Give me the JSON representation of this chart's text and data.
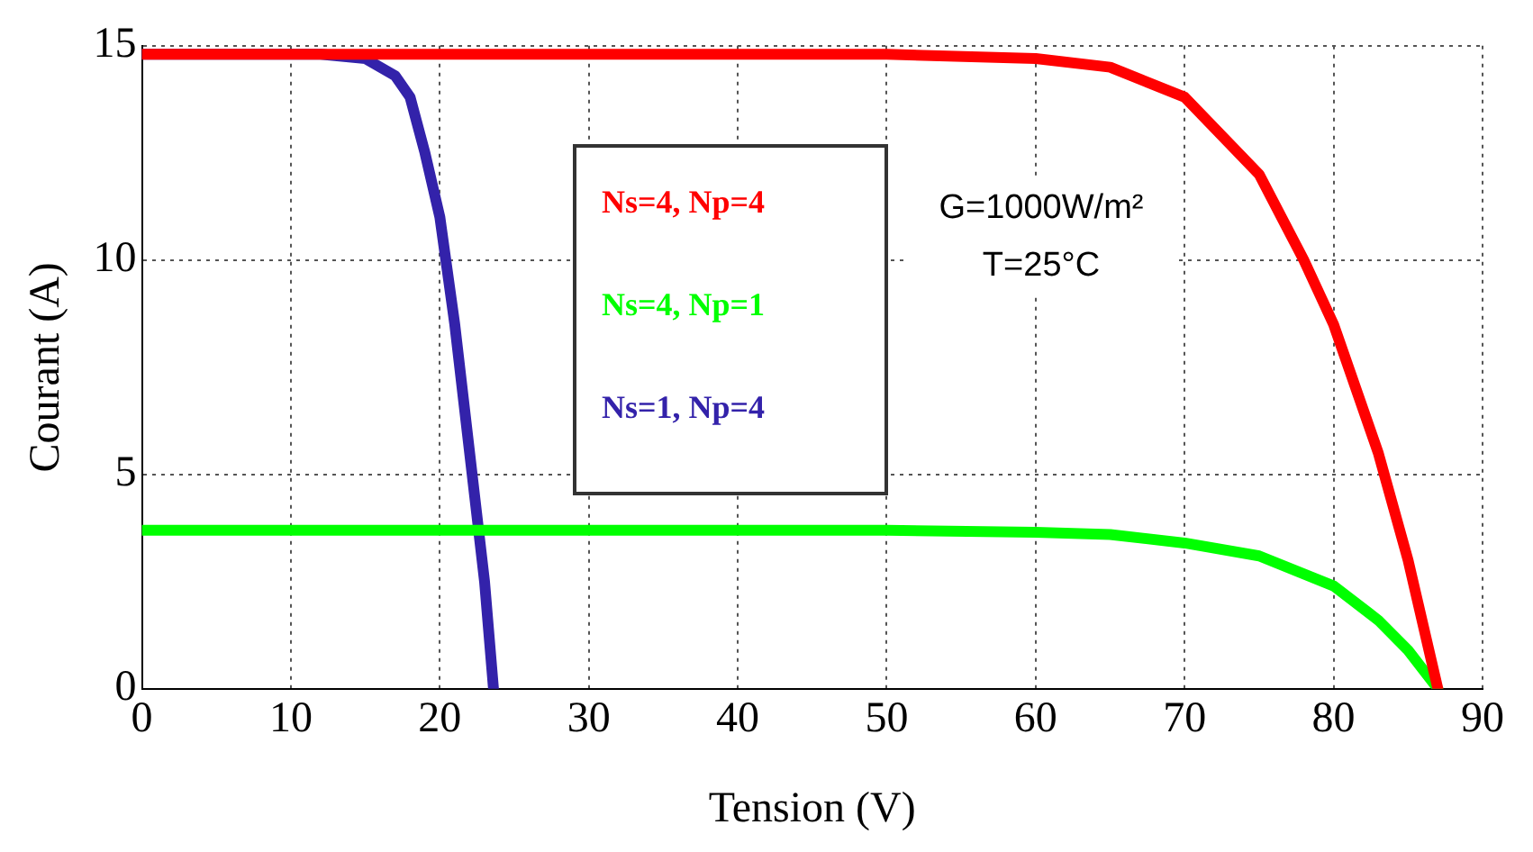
{
  "chart_data": {
    "type": "line",
    "xlabel": "Tension (V)",
    "ylabel": "Courant (A)",
    "xlim": [
      0,
      90
    ],
    "xticks": [
      0,
      10,
      20,
      30,
      40,
      50,
      60,
      70,
      80,
      90
    ],
    "ylim": [
      0,
      15
    ],
    "yticks": [
      0,
      5,
      10,
      15
    ],
    "grid": true,
    "legend": "top",
    "marker": "none",
    "line_style": "solid",
    "series": [
      {
        "name": "Ns=4, Np=4",
        "color": "#ff0000",
        "x": [
          0,
          50,
          60,
          65,
          70,
          75,
          78,
          80,
          83,
          85,
          87
        ],
        "values": [
          14.8,
          14.8,
          14.7,
          14.5,
          13.8,
          12,
          10,
          8.5,
          5.5,
          3,
          0
        ]
      },
      {
        "name": "Ns=4, Np=1",
        "color": "#00ff00",
        "x": [
          0,
          50,
          60,
          65,
          70,
          75,
          80,
          83,
          85,
          87
        ],
        "values": [
          3.7,
          3.7,
          3.65,
          3.6,
          3.4,
          3.1,
          2.4,
          1.6,
          0.9,
          0
        ]
      },
      {
        "name": "Ns=1, Np=4",
        "color": "#3322aa",
        "x": [
          0,
          12,
          15,
          17,
          18,
          19,
          20,
          21,
          22,
          23,
          23.6
        ],
        "values": [
          14.8,
          14.8,
          14.7,
          14.3,
          13.8,
          12.5,
          11,
          8.5,
          5.5,
          2.5,
          0
        ]
      }
    ],
    "annotations": [
      "G=1000W/m²",
      "T=25°C"
    ]
  }
}
